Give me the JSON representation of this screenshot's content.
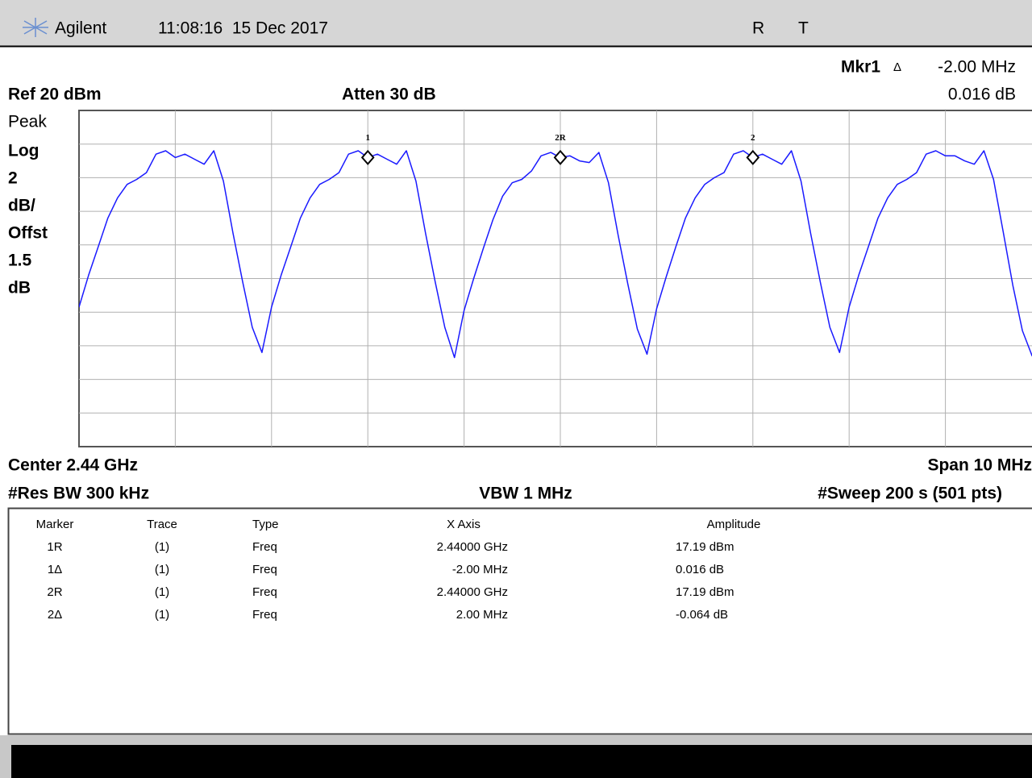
{
  "header": {
    "brand": "Agilent",
    "datetime": "11:08:16  15 Dec 2017",
    "flag_r": "R",
    "flag_t": "T"
  },
  "readout": {
    "marker": "Mkr1",
    "delta": "Δ",
    "value": "-2.00 MHz",
    "amplitude": "0.016 dB"
  },
  "settings": {
    "ref": "Ref 20 dBm",
    "atten": "Atten 30 dB",
    "detector": "Peak",
    "scale": [
      "Log",
      "2",
      "dB/",
      "Offst",
      "1.5",
      "dB"
    ],
    "center": "Center 2.44 GHz",
    "span": "Span 10 MHz",
    "rbw": "#Res BW 300 kHz",
    "vbw": "VBW 1 MHz",
    "sweep": "#Sweep 200 s (501 pts)"
  },
  "chart_data": {
    "type": "line",
    "color": "#1a1aff",
    "grid": true,
    "xlim": [
      2435,
      2445
    ],
    "ylim": [
      0,
      20
    ],
    "x": [
      2435,
      2435.1,
      2435.2,
      2435.3,
      2435.4,
      2435.5,
      2435.6,
      2435.7,
      2435.8,
      2435.9,
      2436,
      2436.1,
      2436.2,
      2436.3,
      2436.4,
      2436.5,
      2436.6,
      2436.7,
      2436.8,
      2436.9,
      2437,
      2437.1,
      2437.2,
      2437.3,
      2437.4,
      2437.5,
      2437.6,
      2437.7,
      2437.8,
      2437.9,
      2438,
      2438.1,
      2438.2,
      2438.3,
      2438.4,
      2438.5,
      2438.6,
      2438.7,
      2438.8,
      2438.9,
      2439,
      2439.1,
      2439.2,
      2439.3,
      2439.4,
      2439.5,
      2439.6,
      2439.7,
      2439.8,
      2439.9,
      2440,
      2440.1,
      2440.2,
      2440.3,
      2440.4,
      2440.5,
      2440.6,
      2440.7,
      2440.8,
      2440.9,
      2441,
      2441.1,
      2441.2,
      2441.3,
      2441.4,
      2441.5,
      2441.6,
      2441.7,
      2441.8,
      2441.9,
      2442,
      2442.1,
      2442.2,
      2442.3,
      2442.4,
      2442.5,
      2442.6,
      2442.7,
      2442.8,
      2442.9,
      2443,
      2443.1,
      2443.2,
      2443.3,
      2443.4,
      2443.5,
      2443.6,
      2443.7,
      2443.8,
      2443.9,
      2444,
      2444.1,
      2444.2,
      2444.3,
      2444.4,
      2444.5,
      2444.6,
      2444.7,
      2444.8,
      2444.9,
      2445
    ],
    "values": [
      8.3,
      10.2,
      11.9,
      13.6,
      14.8,
      15.6,
      15.9,
      16.3,
      17.4,
      17.6,
      17.2,
      17.4,
      17.1,
      16.8,
      17.6,
      15.8,
      12.7,
      9.8,
      7.1,
      5.6,
      8.3,
      10.2,
      11.9,
      13.6,
      14.8,
      15.6,
      15.9,
      16.3,
      17.4,
      17.6,
      17.2,
      17.4,
      17.1,
      16.8,
      17.6,
      15.8,
      12.7,
      9.8,
      7.1,
      5.3,
      8.1,
      10.0,
      11.8,
      13.5,
      14.9,
      15.7,
      15.9,
      16.4,
      17.3,
      17.5,
      17.2,
      17.3,
      17.0,
      16.9,
      17.5,
      15.7,
      12.6,
      9.7,
      7.0,
      5.5,
      8.2,
      10.1,
      11.9,
      13.6,
      14.8,
      15.6,
      16.0,
      16.3,
      17.4,
      17.6,
      17.2,
      17.4,
      17.1,
      16.8,
      17.6,
      15.8,
      12.7,
      9.8,
      7.1,
      5.6,
      8.3,
      10.2,
      11.9,
      13.6,
      14.8,
      15.6,
      15.9,
      16.3,
      17.4,
      17.6,
      17.3,
      17.3,
      17.0,
      16.8,
      17.6,
      15.9,
      12.8,
      9.6,
      6.9,
      5.4,
      7.6
    ],
    "markers": [
      {
        "label": "1",
        "x": 2438,
        "y": 17.2
      },
      {
        "label": "2R",
        "x": 2440,
        "y": 17.2
      },
      {
        "label": "2",
        "x": 2442,
        "y": 17.2
      }
    ]
  },
  "table": {
    "columns": [
      "Marker",
      "Trace",
      "Type",
      "X Axis",
      "Amplitude"
    ],
    "rows": [
      [
        "1R",
        "(1)",
        "Freq",
        "2.44000 GHz",
        "17.19 dBm"
      ],
      [
        "1Δ",
        "(1)",
        "Freq",
        "-2.00 MHz",
        "0.016 dB"
      ],
      [
        "2R",
        "(1)",
        "Freq",
        "2.44000 GHz",
        "17.19 dBm"
      ],
      [
        "2Δ",
        "(1)",
        "Freq",
        "2.00 MHz",
        "-0.064 dB"
      ]
    ]
  }
}
